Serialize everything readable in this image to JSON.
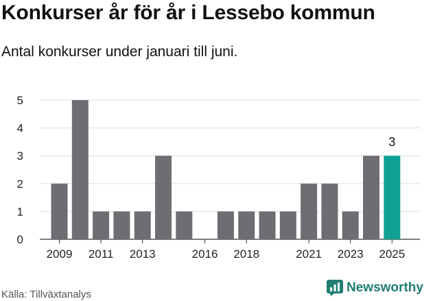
{
  "header": {
    "title": "Konkurser år för år i Lessebo kommun",
    "subtitle": "Antal konkurser under januari till juni."
  },
  "footer": {
    "source": "Källa: Tillväxtanalys",
    "brand": "Newsworthy",
    "brand_icon": "newsworthy-chart-logo-icon"
  },
  "colors": {
    "bar": "#6e6d73",
    "highlight": "#0fa294",
    "grid": "#dddddd",
    "axis": "#333333",
    "brand": "#1f7d72"
  },
  "chart_data": {
    "type": "bar",
    "title": "",
    "xlabel": "",
    "ylabel": "",
    "categories": [
      "2009",
      "2010",
      "2011",
      "2012",
      "2013",
      "2014",
      "2015",
      "2016",
      "2017",
      "2018",
      "2019",
      "2020",
      "2021",
      "2022",
      "2023",
      "2024",
      "2025"
    ],
    "x_tick_labels": [
      "2009",
      "2011",
      "2013",
      "2016",
      "2018",
      "2021",
      "2023",
      "2025"
    ],
    "values": [
      2,
      5,
      1,
      1,
      1,
      3,
      1,
      0,
      1,
      1,
      1,
      1,
      2,
      2,
      1,
      3,
      3
    ],
    "highlight_category": "2025",
    "annotation": {
      "category": "2025",
      "text": "3"
    },
    "ylim": [
      0,
      5
    ],
    "yticks": [
      0,
      1,
      2,
      3,
      4,
      5
    ],
    "grid": true
  }
}
